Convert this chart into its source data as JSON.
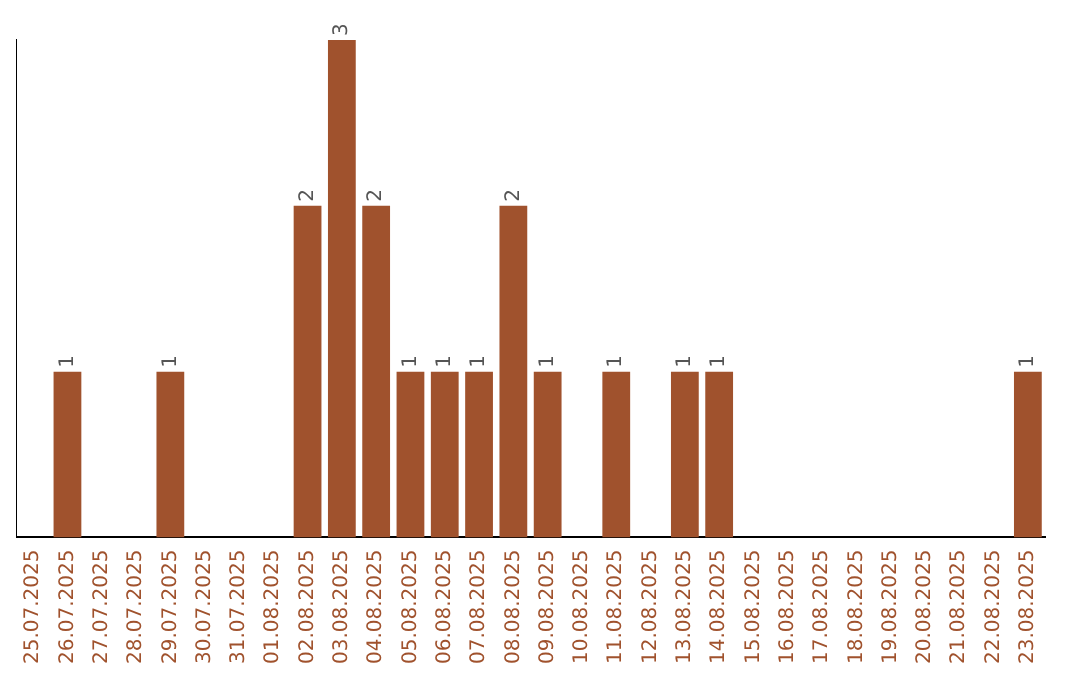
{
  "chart_data": {
    "type": "bar",
    "categories": [
      "25.07.2025",
      "26.07.2025",
      "27.07.2025",
      "28.07.2025",
      "29.07.2025",
      "30.07.2025",
      "31.07.2025",
      "01.08.2025",
      "02.08.2025",
      "03.08.2025",
      "04.08.2025",
      "05.08.2025",
      "06.08.2025",
      "07.08.2025",
      "08.08.2025",
      "09.08.2025",
      "10.08.2025",
      "11.08.2025",
      "12.08.2025",
      "13.08.2025",
      "14.08.2025",
      "15.08.2025",
      "16.08.2025",
      "17.08.2025",
      "18.08.2025",
      "19.08.2025",
      "20.08.2025",
      "21.08.2025",
      "22.08.2025",
      "23.08.2025"
    ],
    "values": [
      0,
      1,
      0,
      0,
      1,
      0,
      0,
      0,
      2,
      3,
      2,
      1,
      1,
      1,
      2,
      1,
      0,
      1,
      0,
      1,
      1,
      0,
      0,
      0,
      0,
      0,
      0,
      0,
      0,
      1
    ],
    "value_labels": [
      null,
      "1",
      null,
      null,
      "1",
      null,
      null,
      null,
      "2",
      "3",
      "2",
      "1",
      "1",
      "1",
      "2",
      "1",
      null,
      "1",
      null,
      "1",
      "1",
      null,
      null,
      null,
      null,
      null,
      null,
      null,
      null,
      "1"
    ],
    "color": "#a0522d",
    "grid": false,
    "legend": false,
    "tick_labels": "x"
  }
}
